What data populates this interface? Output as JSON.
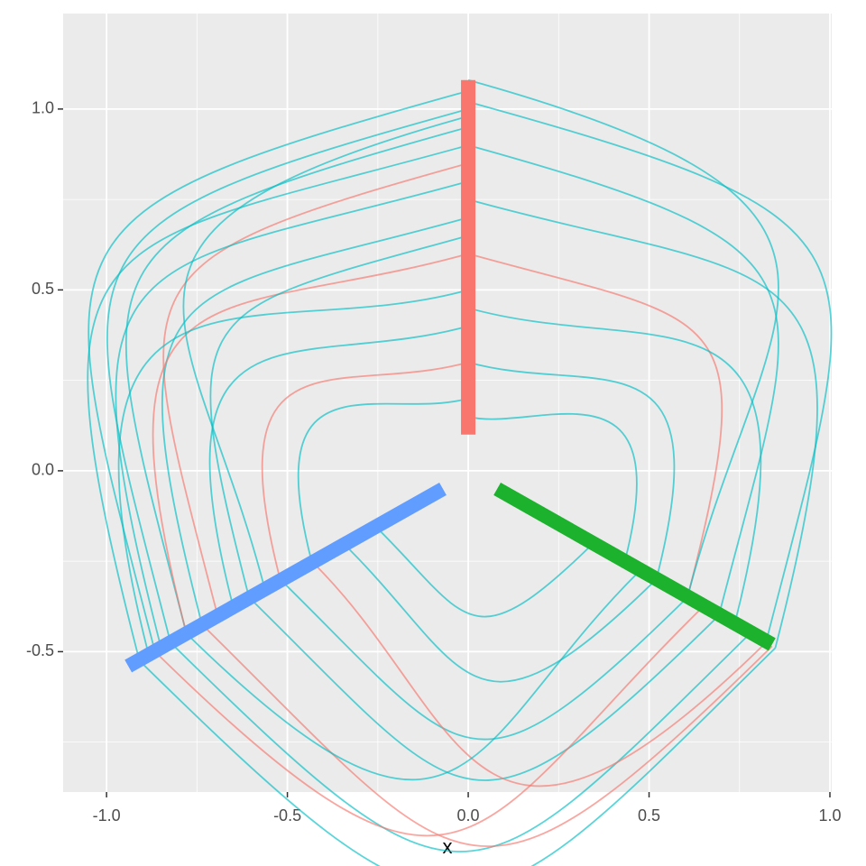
{
  "chart_data": {
    "type": "hive",
    "x_label": "x",
    "xlim": [
      -1.12,
      1.005
    ],
    "ylim": [
      -0.888,
      1.264
    ],
    "xticks": [
      {
        "value": -1,
        "label": "-1.0"
      },
      {
        "value": -0.5,
        "label": "-0.5"
      },
      {
        "value": 0,
        "label": "0.0"
      },
      {
        "value": 0.5,
        "label": "0.5"
      },
      {
        "value": 1,
        "label": "1.0"
      }
    ],
    "yticks": [
      {
        "value": -0.5,
        "label": "-0.5"
      },
      {
        "value": 0,
        "label": "0.0"
      },
      {
        "value": 0.5,
        "label": "0.5"
      },
      {
        "value": 1,
        "label": "1.0"
      }
    ],
    "x_minor_grid": [
      -0.75,
      -0.25,
      0.25,
      0.75
    ],
    "y_minor_grid": [
      -0.75,
      -0.25,
      0.25,
      0.75
    ],
    "grid": true,
    "axes": [
      {
        "color": "#F8766D",
        "x": [
          0,
          0
        ],
        "y": [
          0.1,
          1.08
        ]
      },
      {
        "color": "#619CFF",
        "x": [
          -0.07,
          -0.94
        ],
        "y": [
          -0.05,
          -0.54
        ]
      },
      {
        "color": "#1CB22E",
        "x": [
          0.08,
          0.84
        ],
        "y": [
          -0.05,
          -0.48
        ]
      }
    ],
    "edges": [
      {
        "color": "#00BFC4",
        "x": [
          0,
          -0.866
        ],
        "y": [
          1.05,
          -0.5
        ]
      },
      {
        "color": "#00BFC4",
        "x": [
          0,
          -0.823
        ],
        "y": [
          1.0,
          -0.475
        ]
      },
      {
        "color": "#00BFC4",
        "x": [
          0,
          -0.779
        ],
        "y": [
          0.95,
          -0.45
        ]
      },
      {
        "color": "#00BFC4",
        "x": [
          0,
          -0.909
        ],
        "y": [
          0.9,
          -0.525
        ]
      },
      {
        "color": "#F8766D",
        "x": [
          0,
          -0.693
        ],
        "y": [
          0.85,
          -0.4
        ]
      },
      {
        "color": "#00BFC4",
        "x": [
          0,
          -0.849
        ],
        "y": [
          0.8,
          -0.49
        ]
      },
      {
        "color": "#00BFC4",
        "x": [
          0,
          -0.736
        ],
        "y": [
          0.7,
          -0.425
        ]
      },
      {
        "color": "#F8766D",
        "x": [
          0,
          -0.779
        ],
        "y": [
          0.6,
          -0.45
        ]
      },
      {
        "color": "#00BFC4",
        "x": [
          0,
          -0.883
        ],
        "y": [
          0.5,
          -0.51
        ]
      },
      {
        "color": "#00BFC4",
        "x": [
          0,
          -0.65
        ],
        "y": [
          0.4,
          -0.375
        ]
      },
      {
        "color": "#F8766D",
        "x": [
          0,
          -0.52
        ],
        "y": [
          0.3,
          -0.3
        ]
      },
      {
        "color": "#00BFC4",
        "x": [
          0,
          -0.433
        ],
        "y": [
          0.2,
          -0.25
        ]
      },
      {
        "color": "#00BFC4",
        "x": [
          0,
          0.823
        ],
        "y": [
          1.02,
          -0.475
        ]
      },
      {
        "color": "#00BFC4",
        "x": [
          0,
          0.693
        ],
        "y": [
          0.9,
          -0.4
        ]
      },
      {
        "color": "#00BFC4",
        "x": [
          0,
          0.849
        ],
        "y": [
          0.75,
          -0.49
        ]
      },
      {
        "color": "#F8766D",
        "x": [
          0,
          0.606
        ],
        "y": [
          0.6,
          -0.35
        ]
      },
      {
        "color": "#00BFC4",
        "x": [
          0,
          0.736
        ],
        "y": [
          0.45,
          -0.425
        ]
      },
      {
        "color": "#00BFC4",
        "x": [
          0,
          0.52
        ],
        "y": [
          0.3,
          -0.3
        ]
      },
      {
        "color": "#00BFC4",
        "x": [
          -0.909,
          0.849
        ],
        "y": [
          -0.525,
          -0.49
        ]
      },
      {
        "color": "#00BFC4",
        "x": [
          -0.823,
          0.779
        ],
        "y": [
          -0.475,
          -0.45
        ]
      },
      {
        "color": "#F8766D",
        "x": [
          -0.736,
          0.84
        ],
        "y": [
          -0.425,
          -0.485
        ]
      },
      {
        "color": "#00BFC4",
        "x": [
          -0.606,
          0.693
        ],
        "y": [
          -0.35,
          -0.4
        ]
      },
      {
        "color": "#00BFC4",
        "x": [
          -0.52,
          0.606
        ],
        "y": [
          -0.3,
          -0.35
        ]
      },
      {
        "color": "#F8766D",
        "x": [
          -0.433,
          0.823
        ],
        "y": [
          -0.25,
          -0.475
        ]
      },
      {
        "color": "#00BFC4",
        "x": [
          -0.346,
          0.52
        ],
        "y": [
          -0.2,
          -0.3
        ]
      },
      {
        "color": "#00BFC4",
        "x": [
          -0.26,
          0.346
        ],
        "y": [
          -0.15,
          -0.2
        ]
      },
      {
        "color": "#00BFC4",
        "x": [
          -0.779,
          0.476
        ],
        "y": [
          -0.45,
          -0.275
        ]
      },
      {
        "color": "#F8766D",
        "x": [
          -0.866,
          0.65
        ],
        "y": [
          -0.5,
          -0.375
        ]
      },
      {
        "color": "#00BFC4",
        "x": [
          0,
          -0.606
        ],
        "y": [
          0.65,
          -0.35
        ]
      },
      {
        "color": "#00BFC4",
        "x": [
          0,
          -0.563
        ],
        "y": [
          0.98,
          -0.325
        ]
      },
      {
        "color": "#00BFC4",
        "x": [
          0,
          0.433
        ],
        "y": [
          0.15,
          -0.25
        ]
      },
      {
        "color": "#00BFC4",
        "x": [
          0,
          0.606
        ],
        "y": [
          1.08,
          -0.35
        ]
      }
    ]
  }
}
